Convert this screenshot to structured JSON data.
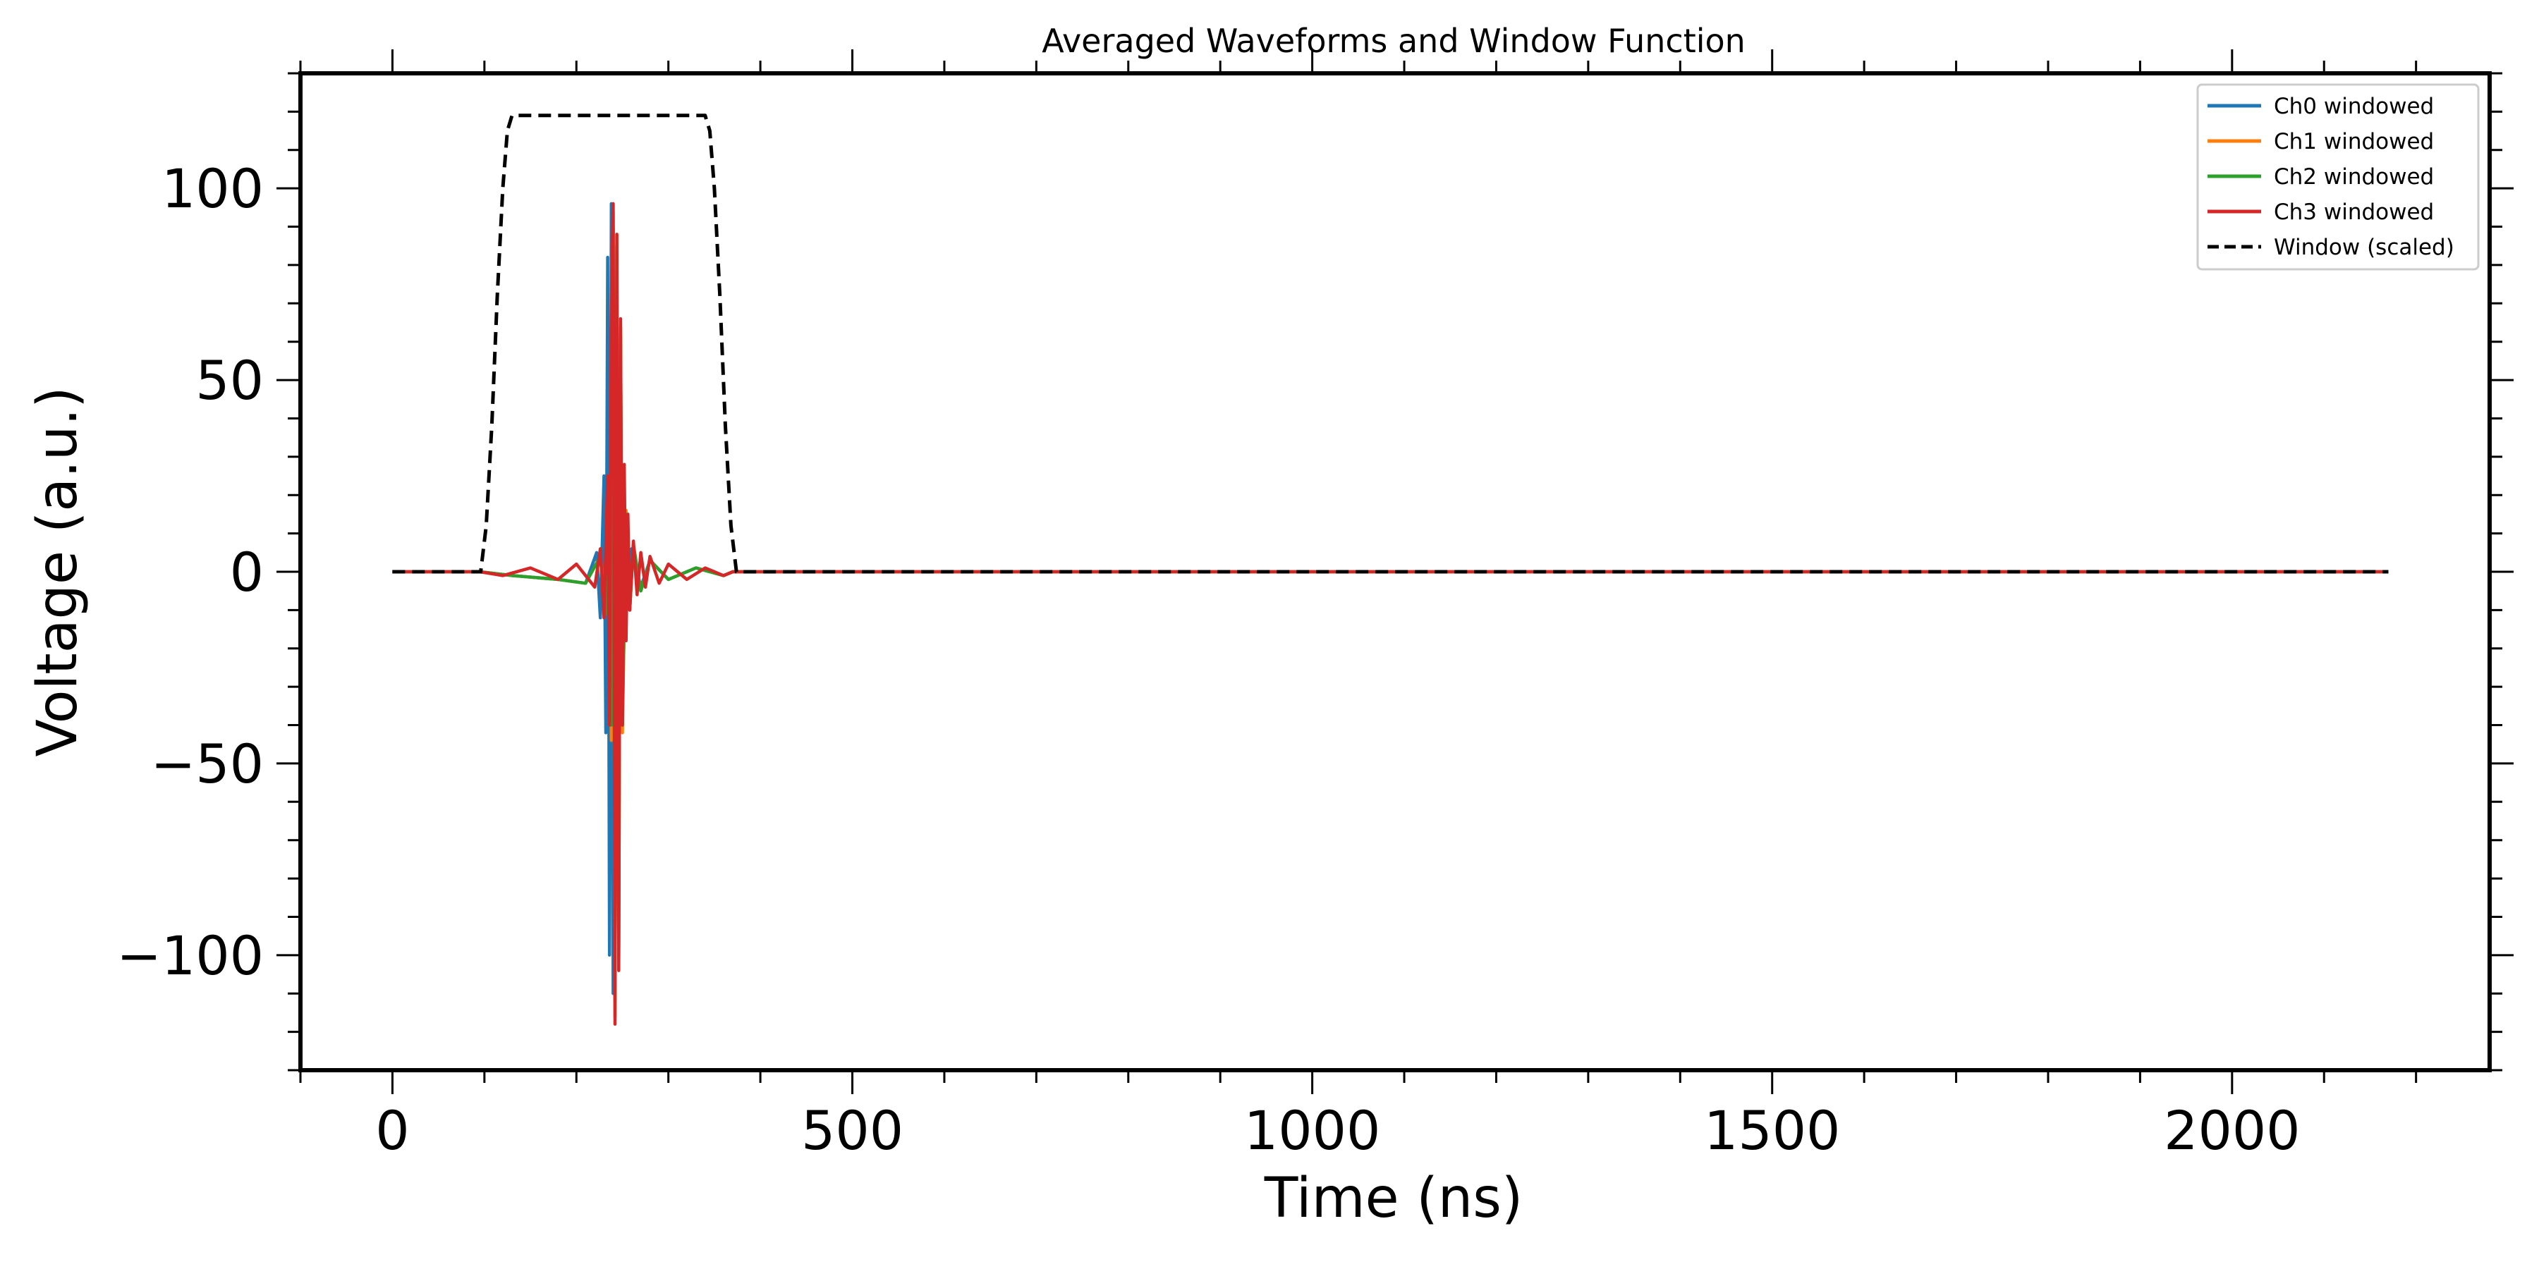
{
  "chart_data": {
    "type": "line",
    "title": "Averaged Waveforms and Window Function",
    "xlabel": "Time (ns)",
    "ylabel": "Voltage (a.u.)",
    "xlim": [
      -100,
      2280
    ],
    "ylim": [
      -130,
      130
    ],
    "x_ticks": [
      0,
      500,
      1000,
      1500,
      2000
    ],
    "x_tick_labels": [
      "0",
      "500",
      "1000",
      "1500",
      "2000"
    ],
    "x_minor_step": 100,
    "y_ticks": [
      -100,
      -50,
      0,
      50,
      100
    ],
    "y_tick_labels": [
      "−100",
      "−50",
      "0",
      "50",
      "100"
    ],
    "y_minor_step": 10,
    "grid": false,
    "legend_position": "top-right",
    "series": [
      {
        "name": "Ch0 windowed",
        "color": "#1f77b4",
        "style": "solid",
        "x": [
          0,
          95,
          130,
          180,
          210,
          222,
          226,
          230,
          232,
          234,
          236,
          238,
          240,
          242,
          246,
          250,
          255,
          260,
          270,
          280,
          300,
          330,
          360,
          370,
          2170
        ],
        "y": [
          0,
          0,
          -1,
          -2,
          -3,
          5,
          -12,
          25,
          -42,
          82,
          -100,
          96,
          -110,
          66,
          -38,
          14,
          -9,
          6,
          -4,
          3,
          -2,
          1,
          -1,
          0,
          0
        ]
      },
      {
        "name": "Ch1 windowed",
        "color": "#ff7f0e",
        "style": "solid",
        "x": [
          0,
          95,
          130,
          180,
          210,
          226,
          232,
          236,
          238,
          240,
          242,
          244,
          246,
          248,
          250,
          254,
          258,
          262,
          270,
          280,
          300,
          330,
          360,
          370,
          2170
        ],
        "y": [
          0,
          0,
          -1,
          -2,
          -3,
          4,
          -10,
          22,
          -44,
          94,
          -116,
          88,
          -100,
          64,
          -42,
          16,
          -10,
          7,
          -5,
          3,
          -2,
          1,
          -1,
          0,
          0
        ]
      },
      {
        "name": "Ch2 windowed",
        "color": "#2ca02c",
        "style": "solid",
        "x": [
          0,
          95,
          130,
          180,
          210,
          226,
          232,
          236,
          238,
          240,
          242,
          244,
          246,
          248,
          250,
          254,
          258,
          262,
          270,
          280,
          300,
          330,
          360,
          370,
          2170
        ],
        "y": [
          0,
          0,
          -1,
          -2,
          -3,
          4,
          -11,
          21,
          -40,
          90,
          -112,
          85,
          -98,
          62,
          -40,
          15,
          -10,
          7,
          -5,
          3,
          -2,
          1,
          -1,
          0,
          0
        ]
      },
      {
        "name": "Ch3 windowed",
        "color": "#d62728",
        "style": "solid",
        "x": [
          0,
          95,
          120,
          150,
          180,
          200,
          220,
          226,
          230,
          234,
          236,
          238,
          240,
          242,
          244,
          246,
          248,
          250,
          252,
          254,
          256,
          258,
          262,
          266,
          270,
          275,
          280,
          290,
          300,
          320,
          340,
          360,
          370,
          2170
        ],
        "y": [
          0,
          0,
          -1,
          1,
          -2,
          2,
          -4,
          6,
          -12,
          25,
          -40,
          70,
          96,
          -118,
          88,
          -104,
          66,
          -40,
          28,
          -18,
          15,
          -10,
          8,
          -6,
          5,
          -4,
          4,
          -3,
          2,
          -2,
          1,
          -1,
          0,
          0
        ]
      },
      {
        "name": "Window (scaled)",
        "color": "#000000",
        "style": "dashed",
        "x": [
          0,
          96,
          102,
          108,
          114,
          120,
          125,
          130,
          340,
          345,
          350,
          356,
          362,
          368,
          374,
          2170
        ],
        "y": [
          0,
          0,
          12,
          38,
          72,
          100,
          115,
          119,
          119,
          115,
          100,
          72,
          38,
          12,
          0,
          0
        ]
      }
    ]
  }
}
